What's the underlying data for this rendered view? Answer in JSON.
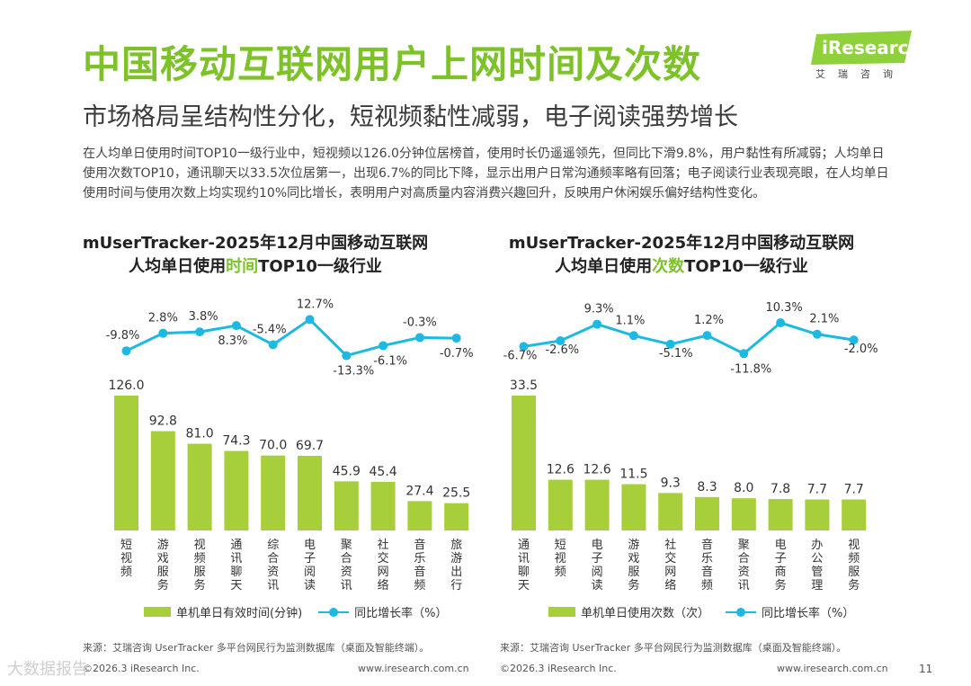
{
  "header": {
    "title": "中国移动互联网用户上网时间及次数",
    "subtitle": "市场格局呈结构性分化，短视频黏性减弱，电子阅读强势增长",
    "intro": "在人均单日使用时间TOP10一级行业中，短视频以126.0分钟位居榜首，使用时长仍遥遥领先，但同比下滑9.8%，用户黏性有所减弱；人均单日使用次数TOP10，通讯聊天以33.5次位居第一，出现6.7%的同比下降，显示出用户日常沟通频率略有回落；电子阅读行业表现亮眼，在人均单日使用时间与使用次数上均实现约10%同比增长，表明用户对高质量内容消费兴趣回升，反映用户休闲娱乐偏好结构性变化。"
  },
  "logo": {
    "text": "iResearch",
    "sub": "艾瑞咨询"
  },
  "colors": {
    "accent": "#7dc228",
    "bar": "#a6cf3b",
    "line": "#1cb9e2"
  },
  "chart_data": [
    {
      "type": "bar",
      "title_line1": "mUserTracker-2025年12月中国移动互联网",
      "title_line2_pre": "人均单日使用",
      "title_line2_hl": "时间",
      "title_line2_post": "TOP10一级行业",
      "categories": [
        "短视频",
        "游戏服务",
        "视频服务",
        "通讯聊天",
        "综合资讯",
        "电子阅读",
        "聚合资讯",
        "社交网络",
        "音乐音频",
        "旅游出行"
      ],
      "series": [
        {
          "name": "单机单日有效时间(分钟)",
          "type": "bar",
          "values": [
            126.0,
            92.8,
            81.0,
            74.3,
            70.0,
            69.7,
            45.9,
            45.4,
            27.4,
            25.5
          ],
          "labels": [
            "126.0",
            "92.8",
            "81.0",
            "74.3",
            "70.0",
            "69.7",
            "45.9",
            "45.4",
            "27.4",
            "25.5"
          ]
        },
        {
          "name": "同比增长率（%）",
          "type": "line",
          "values": [
            -9.8,
            2.8,
            3.8,
            8.3,
            -5.4,
            12.7,
            -13.3,
            -6.1,
            -0.3,
            -0.7
          ],
          "labels": [
            "-9.8%",
            "2.8%",
            "3.8%",
            "8.3%",
            "-5.4%",
            "12.7%",
            "-13.3%",
            "-6.1%",
            "-0.3%",
            "-0.7%"
          ]
        }
      ],
      "legend_bar": "单机单日有效时间(分钟)",
      "legend_line": "同比增长率（%）",
      "source": "来源：艾瑞咨询 UserTracker 多平台网民行为监测数据库（桌面及智能终端）。"
    },
    {
      "type": "bar",
      "title_line1": "mUserTracker-2025年12月中国移动互联网",
      "title_line2_pre": "人均单日使用",
      "title_line2_hl": "次数",
      "title_line2_post": "TOP10一级行业",
      "categories": [
        "通讯聊天",
        "短视频",
        "电子阅读",
        "游戏服务",
        "社交网络",
        "音乐音频",
        "聚合资讯",
        "电子商务",
        "办公管理",
        "视频服务"
      ],
      "series": [
        {
          "name": "单机单日使用次数（次）",
          "type": "bar",
          "values": [
            33.5,
            12.6,
            12.6,
            11.5,
            9.3,
            8.3,
            8.0,
            7.8,
            7.7,
            7.7
          ],
          "labels": [
            "33.5",
            "12.6",
            "12.6",
            "11.5",
            "9.3",
            "8.3",
            "8.0",
            "7.8",
            "7.7",
            "7.7"
          ]
        },
        {
          "name": "同比增长率（%）",
          "type": "line",
          "values": [
            -6.7,
            -2.6,
            9.3,
            1.1,
            -5.1,
            1.2,
            -11.8,
            10.3,
            2.1,
            -2.0
          ],
          "labels": [
            "-6.7%",
            "-2.6%",
            "9.3%",
            "1.1%",
            "-5.1%",
            "1.2%",
            "-11.8%",
            "10.3%",
            "2.1%",
            "-2.0%"
          ]
        }
      ],
      "legend_bar": "单机单日使用次数（次）",
      "legend_line": "同比增长率（%）",
      "source": "来源：艾瑞咨询 UserTracker 多平台网民行为监测数据库（桌面及智能终端）。"
    }
  ],
  "footer": {
    "left_copyright": "©2026.3 iResearch Inc.",
    "left_url": "www.iresearch.com.cn",
    "right_copyright": "©2026.3 iResearch Inc.",
    "right_url": "www.iresearch.com.cn",
    "page_number": "11",
    "watermark": "大数据报告"
  }
}
